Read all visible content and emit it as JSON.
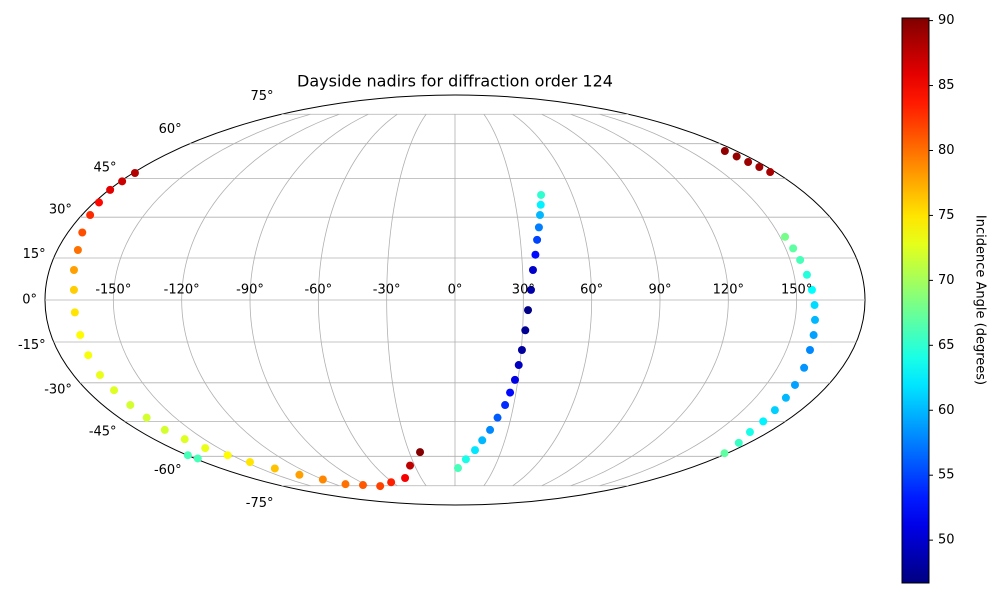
{
  "chart_data": {
    "type": "scatter",
    "projection": "mollweide",
    "title": "Dayside nadirs for diffraction order 124",
    "xlim": [
      -180,
      180
    ],
    "ylim": [
      -90,
      90
    ],
    "xticks": [
      {
        "value": -150,
        "label": "-150°"
      },
      {
        "value": -120,
        "label": "-120°"
      },
      {
        "value": -90,
        "label": "-90°"
      },
      {
        "value": -60,
        "label": "-60°"
      },
      {
        "value": -30,
        "label": "-30°"
      },
      {
        "value": 0,
        "label": "0°"
      },
      {
        "value": 30,
        "label": "30°"
      },
      {
        "value": 60,
        "label": "60°"
      },
      {
        "value": 90,
        "label": "90°"
      },
      {
        "value": 120,
        "label": "120°"
      },
      {
        "value": 150,
        "label": "150°"
      }
    ],
    "yticks": [
      {
        "value": -75,
        "label": "-75°"
      },
      {
        "value": -60,
        "label": "-60°"
      },
      {
        "value": -45,
        "label": "-45°"
      },
      {
        "value": -30,
        "label": "-30°"
      },
      {
        "value": -15,
        "label": "-15°"
      },
      {
        "value": 0,
        "label": "0°"
      },
      {
        "value": 15,
        "label": "15°"
      },
      {
        "value": 30,
        "label": "30°"
      },
      {
        "value": 45,
        "label": "45°"
      },
      {
        "value": 60,
        "label": "60°"
      },
      {
        "value": 75,
        "label": "75°"
      }
    ],
    "grid": true,
    "colormap": "jet",
    "x": [
      -179,
      -179.2,
      -179.5,
      -177.7,
      -176,
      -173.3,
      -170.7,
      -169.1,
      -167.5,
      -167.2,
      -167,
      -167.2,
      -167.5,
      -166.7,
      -166,
      -165.3,
      -164.7,
      -161.6,
      -158.6,
      -152.8,
      -147,
      -138.8,
      -130.7,
      -120.1,
      -109.5,
      -93.9,
      -78.3,
      -61.2,
      -44.2,
      -33.5,
      -22.9,
      2.3,
      7.6,
      12.9,
      16.4,
      19.9,
      22.8,
      25.6,
      27.1,
      28.6,
      29.5,
      30.3,
      31.2,
      32.1,
      33.4,
      34.6,
      36.2,
      37.7,
      39.4,
      41.0,
      42.5,
      44,
      152.3,
      153.4,
      154.5,
      155.7,
      156.9,
      157.9,
      158.8,
      159.8,
      160.7,
      162.4,
      164,
      165.3,
      166.5,
      167.9,
      169.3,
      173.7,
      178.1,
      172.5,
      173.2,
      174,
      175.6,
      177.1,
      -179.5,
      -178
    ],
    "y": [
      47.3,
      43.9,
      40.5,
      35.6,
      30.8,
      24.3,
      17.9,
      10.7,
      3.6,
      -4.4,
      -12.5,
      -19.8,
      -27.1,
      -32.8,
      -38.5,
      -43.5,
      -48.5,
      -52.4,
      -56.3,
      -59.5,
      -62.7,
      -65.8,
      -69.0,
      -71.5,
      -74.1,
      -74.6,
      -75.2,
      -73.0,
      -70.7,
      -64.4,
      -58.1,
      -65.6,
      -61.4,
      -57.2,
      -52.9,
      -48.5,
      -43.5,
      -38.5,
      -33.7,
      -28.9,
      -23.4,
      -17.9,
      -10.8,
      -3.6,
      3.6,
      10.7,
      16.2,
      21.6,
      26.2,
      30.8,
      34.7,
      38.5,
      22.7,
      18.5,
      14.3,
      9.0,
      3.6,
      -1.8,
      -7.1,
      -12.5,
      -17.9,
      -24.4,
      -30.8,
      -35.7,
      -40.5,
      -45.0,
      -49.4,
      -54.0,
      -58.6,
      56.7,
      54.3,
      51.9,
      49.8,
      47.7,
      -59.5,
      -61
    ],
    "c": [
      88,
      87,
      86,
      84.5,
      83,
      81.5,
      80,
      78,
      76,
      75,
      74,
      73.5,
      73,
      72.5,
      72,
      72,
      72,
      72.5,
      73,
      74,
      75,
      76.5,
      78,
      79,
      80,
      81,
      82,
      83.5,
      85,
      87.5,
      90,
      66,
      64,
      62,
      60,
      58,
      56,
      54,
      52.5,
      51,
      49.5,
      48,
      47.5,
      47,
      48.5,
      50,
      52.5,
      55,
      57.5,
      60,
      62.5,
      65,
      68,
      67,
      66,
      64.5,
      63,
      61.5,
      60,
      59,
      58,
      58.5,
      59,
      60,
      61,
      62.5,
      64,
      65.5,
      67,
      89.5,
      89.3,
      89,
      88.8,
      88.5,
      66,
      66
    ],
    "colorbar": {
      "label": "Incidence Angle (degrees)",
      "lim": [
        46.7,
        90.2
      ],
      "ticks": [
        50,
        55,
        60,
        65,
        70,
        75,
        80,
        85,
        90
      ]
    }
  }
}
